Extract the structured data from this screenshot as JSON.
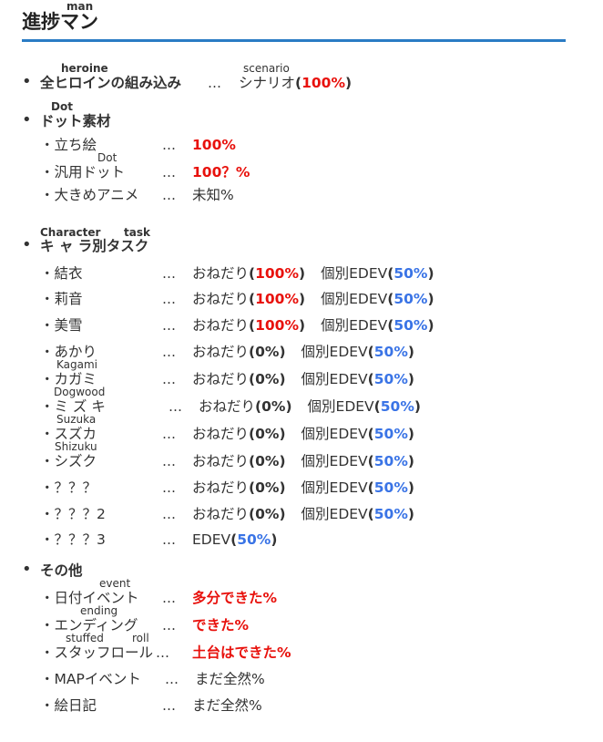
{
  "header": {
    "title": "進捗マン",
    "title_ruby": "man"
  },
  "sections": [
    {
      "label": "全ヒロインの組み込み",
      "ruby": [
        "heroine"
      ],
      "dots": "…",
      "value_label": "シナリオ",
      "value_ruby": "scenario",
      "value": "100%"
    },
    {
      "label": "ドット素材",
      "ruby": [
        "Dot"
      ],
      "items": [
        {
          "label": "・立ち絵",
          "dots": "…",
          "value": "100%",
          "status": "red"
        },
        {
          "label": "・汎用ドット",
          "ruby": "Dot",
          "dots": "…",
          "value": "100？%",
          "status": "red"
        },
        {
          "label": "・大きめアニメ",
          "dots": "…",
          "value": "未知%",
          "status": "plain"
        }
      ]
    },
    {
      "label": "キ ャ ラ別タスク",
      "ruby": [
        "Character",
        "task"
      ],
      "items": [
        {
          "label": "・結衣",
          "dots": "…",
          "a_label": "おねだり",
          "a": "100%",
          "b_label": "個別EDEV",
          "b": "50%"
        },
        {
          "label": "・莉音",
          "dots": "…",
          "a_label": "おねだり",
          "a": "100%",
          "b_label": "個別EDEV",
          "b": "50%"
        },
        {
          "label": "・美雪",
          "dots": "…",
          "a_label": "おねだり",
          "a": "100%",
          "b_label": "個別EDEV",
          "b": "50%"
        },
        {
          "label": "・あかり",
          "dots": "…",
          "a_label": "おねだり",
          "a": "0%",
          "b_label": "個別EDEV",
          "b": "50%"
        },
        {
          "label": "・カガミ",
          "ruby": "Kagami",
          "dots": "…",
          "a_label": "おねだり",
          "a": "0%",
          "b_label": "個別EDEV",
          "b": "50%"
        },
        {
          "label": "・ミ ズ キ",
          "ruby": "Dogwood",
          "dots": "…",
          "a_label": "おねだり",
          "a": "0%",
          "b_label": "個別EDEV",
          "b": "50%"
        },
        {
          "label": "・スズカ",
          "ruby": "Suzuka",
          "dots": "…",
          "a_label": "おねだり",
          "a": "0%",
          "b_label": "個別EDEV",
          "b": "50%"
        },
        {
          "label": "・シズク",
          "ruby": "Shizuku",
          "dots": "…",
          "a_label": "おねだり",
          "a": "0%",
          "b_label": "個別EDEV",
          "b": "50%"
        },
        {
          "label": "・？？？",
          "dots": "…",
          "a_label": "おねだり",
          "a": "0%",
          "b_label": "個別EDEV",
          "b": "50%"
        },
        {
          "label": "・？？？2",
          "dots": "…",
          "a_label": "おねだり",
          "a": "0%",
          "b_label": "個別EDEV",
          "b": "50%"
        },
        {
          "label": "・？？？3",
          "dots": "…",
          "b_label": "EDEV",
          "b": "50%"
        }
      ]
    },
    {
      "label": "その他",
      "items": [
        {
          "label": "・日付イベント",
          "ruby": [
            "event"
          ],
          "dots": "…",
          "value": "多分できた%",
          "status": "red"
        },
        {
          "label": "・エンディング",
          "ruby": [
            "ending"
          ],
          "dots": "…",
          "value": "できた%",
          "status": "red"
        },
        {
          "label": "・スタッフロール",
          "ruby": [
            "stuffed",
            "roll"
          ],
          "dots": "…",
          "value": "土台はできた%",
          "status": "red"
        },
        {
          "label": "・MAPイベント",
          "dots": "…",
          "value": "まだ全然%",
          "status": "plain"
        },
        {
          "label": "・絵日記",
          "dots": "…",
          "value": "まだ全然%",
          "status": "plain"
        }
      ]
    }
  ],
  "colors": {
    "accent_rule": "#2a7bc4",
    "done": "#e8110c",
    "partial": "#3a74e6"
  }
}
